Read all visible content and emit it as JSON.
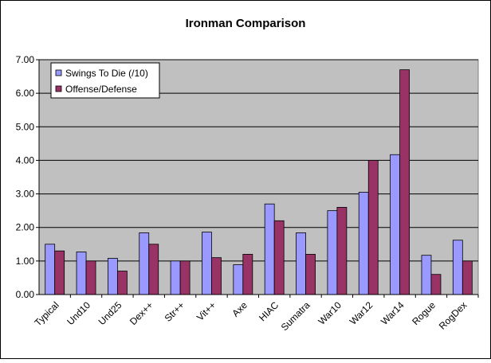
{
  "chart_data": {
    "type": "bar",
    "title": "Ironman Comparison",
    "xlabel": "",
    "ylabel": "",
    "ylim": [
      0,
      7
    ],
    "yticks": [
      "0.00",
      "1.00",
      "2.00",
      "3.00",
      "4.00",
      "5.00",
      "6.00",
      "7.00"
    ],
    "grid": true,
    "legend_position": "top-left",
    "categories": [
      "Typical",
      "Und10",
      "Und25",
      "Dex++",
      "Str++",
      "Vit++",
      "Axe",
      "HIAC",
      "Sumatra",
      "War10",
      "War12",
      "War14",
      "Rogue",
      "RogDex"
    ],
    "series": [
      {
        "name": "Swings To Die (/10)",
        "color": "#9999ff",
        "values": [
          1.5,
          1.27,
          1.08,
          1.84,
          1.0,
          1.86,
          0.89,
          2.7,
          1.84,
          2.5,
          3.05,
          4.17,
          1.17,
          1.62
        ]
      },
      {
        "name": "Offense/Defense",
        "color": "#993366",
        "values": [
          1.3,
          1.0,
          0.7,
          1.5,
          1.0,
          1.1,
          1.2,
          2.2,
          1.2,
          2.6,
          4.0,
          6.7,
          0.6,
          1.0
        ]
      }
    ],
    "plot_background": "#c0c0c0"
  }
}
